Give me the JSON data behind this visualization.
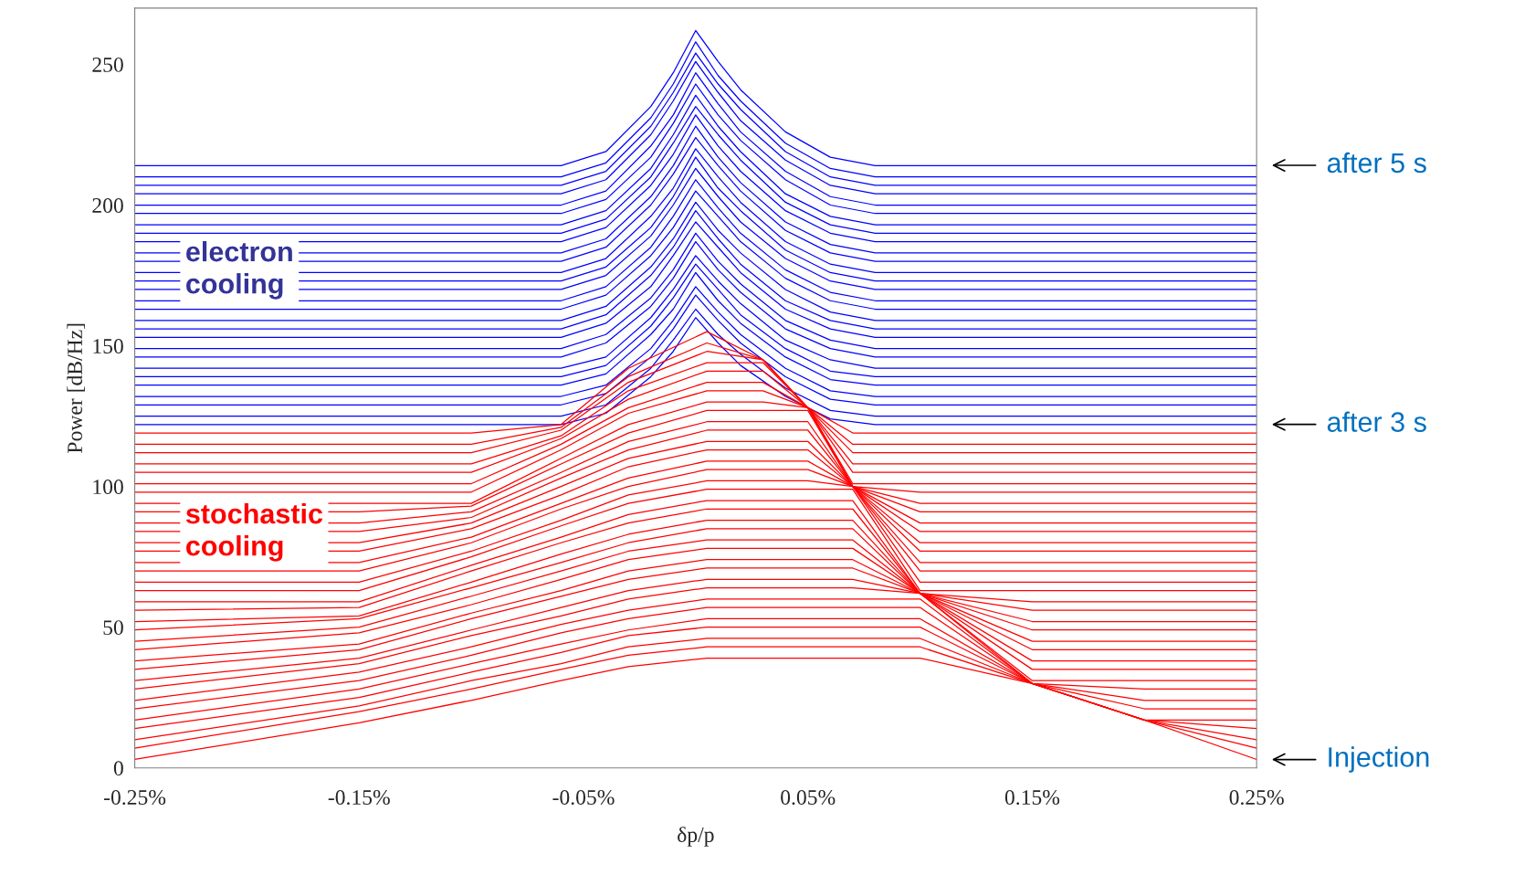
{
  "chart_data": {
    "type": "line",
    "xlabel": "δp/p",
    "ylabel": "Power [dB/Hz]",
    "xlim": [
      -0.25,
      0.25
    ],
    "ylim": [
      0,
      270
    ],
    "xticks": [
      {
        "value": -0.25,
        "label": "-0.25%"
      },
      {
        "value": -0.15,
        "label": "-0.15%"
      },
      {
        "value": -0.05,
        "label": "-0.05%"
      },
      {
        "value": 0.05,
        "label": "0.05%"
      },
      {
        "value": 0.15,
        "label": "0.15%"
      },
      {
        "value": 0.25,
        "label": "0.25%"
      }
    ],
    "yticks": [
      0,
      50,
      100,
      150,
      200,
      250
    ],
    "grid": false,
    "marker": "none",
    "line_style": "solid",
    "annotations": [
      "electron\ncooling",
      "stochastic\ncooling",
      "after 5 s",
      "after 3 s",
      "Injection"
    ],
    "series": [
      {
        "color": "#0000ff",
        "x": [
          -0.25,
          -0.1,
          -0.06,
          -0.04,
          -0.02,
          -0.01,
          0,
          0.01,
          0.02,
          0.04,
          0.06,
          0.08,
          0.25
        ],
        "values": [
          122,
          122,
          122,
          126,
          139,
          148,
          160,
          151,
          143,
          132,
          124,
          122,
          122
        ]
      },
      {
        "color": "#0000ff",
        "x": [
          -0.25,
          -0.1,
          -0.06,
          -0.04,
          -0.02,
          -0.01,
          0,
          0.01,
          0.02,
          0.04,
          0.06,
          0.08,
          0.25
        ],
        "values": [
          125,
          125,
          125,
          129,
          142,
          152,
          163,
          154,
          147,
          135,
          127,
          125,
          125
        ]
      },
      {
        "color": "#0000ff",
        "x": [
          -0.25,
          -0.1,
          -0.06,
          -0.04,
          -0.02,
          -0.01,
          0,
          0.01,
          0.02,
          0.04,
          0.06,
          0.08,
          0.25
        ],
        "values": [
          129,
          129,
          129,
          133,
          146,
          156,
          168,
          159,
          151,
          139,
          131,
          129,
          129
        ]
      },
      {
        "color": "#0000ff",
        "x": [
          -0.25,
          -0.1,
          -0.06,
          -0.04,
          -0.02,
          -0.01,
          0,
          0.01,
          0.02,
          0.04,
          0.06,
          0.08,
          0.25
        ],
        "values": [
          132,
          132,
          132,
          136,
          149,
          159,
          171,
          162,
          154,
          142,
          134,
          132,
          132
        ]
      },
      {
        "color": "#0000ff",
        "x": [
          -0.25,
          -0.1,
          -0.06,
          -0.04,
          -0.02,
          -0.01,
          0,
          0.01,
          0.02,
          0.04,
          0.06,
          0.08,
          0.25
        ],
        "values": [
          136,
          136,
          136,
          140,
          154,
          163,
          176,
          166,
          158,
          146,
          138,
          136,
          136
        ]
      },
      {
        "color": "#0000ff",
        "x": [
          -0.25,
          -0.1,
          -0.06,
          -0.04,
          -0.02,
          -0.01,
          0,
          0.01,
          0.02,
          0.04,
          0.06,
          0.08,
          0.25
        ],
        "values": [
          139,
          139,
          139,
          143,
          157,
          167,
          179,
          170,
          161,
          149,
          141,
          139,
          139
        ]
      },
      {
        "color": "#0000ff",
        "x": [
          -0.25,
          -0.1,
          -0.06,
          -0.04,
          -0.02,
          -0.01,
          0,
          0.01,
          0.02,
          0.04,
          0.06,
          0.08,
          0.25
        ],
        "values": [
          142,
          142,
          142,
          146,
          160,
          170,
          182,
          173,
          165,
          152,
          145,
          142,
          142
        ]
      },
      {
        "color": "#0000ff",
        "x": [
          -0.25,
          -0.1,
          -0.06,
          -0.04,
          -0.02,
          -0.01,
          0,
          0.01,
          0.02,
          0.04,
          0.06,
          0.08,
          0.25
        ],
        "values": [
          146,
          146,
          146,
          151,
          164,
          174,
          187,
          177,
          169,
          156,
          149,
          146,
          146
        ]
      },
      {
        "color": "#0000ff",
        "x": [
          -0.25,
          -0.1,
          -0.06,
          -0.04,
          -0.02,
          -0.01,
          0,
          0.01,
          0.02,
          0.04,
          0.06,
          0.08,
          0.25
        ],
        "values": [
          149,
          149,
          149,
          154,
          167,
          177,
          190,
          180,
          172,
          159,
          152,
          149,
          149
        ]
      },
      {
        "color": "#0000ff",
        "x": [
          -0.25,
          -0.1,
          -0.06,
          -0.04,
          -0.02,
          -0.01,
          0,
          0.01,
          0.02,
          0.04,
          0.06,
          0.08,
          0.25
        ],
        "values": [
          153,
          153,
          153,
          158,
          171,
          182,
          194,
          185,
          176,
          163,
          156,
          153,
          153
        ]
      },
      {
        "color": "#0000ff",
        "x": [
          -0.25,
          -0.1,
          -0.06,
          -0.04,
          -0.02,
          -0.01,
          0,
          0.01,
          0.02,
          0.04,
          0.06,
          0.08,
          0.25
        ],
        "values": [
          156,
          156,
          156,
          161,
          175,
          185,
          198,
          188,
          179,
          166,
          159,
          156,
          156
        ]
      },
      {
        "color": "#0000ff",
        "x": [
          -0.25,
          -0.1,
          -0.06,
          -0.04,
          -0.02,
          -0.01,
          0,
          0.01,
          0.02,
          0.04,
          0.06,
          0.08,
          0.25
        ],
        "values": [
          159,
          159,
          159,
          164,
          178,
          188,
          201,
          191,
          183,
          170,
          162,
          159,
          159
        ]
      },
      {
        "color": "#0000ff",
        "x": [
          -0.25,
          -0.1,
          -0.06,
          -0.04,
          -0.02,
          -0.01,
          0,
          0.01,
          0.02,
          0.04,
          0.06,
          0.08,
          0.25
        ],
        "values": [
          163,
          163,
          163,
          168,
          182,
          192,
          205,
          196,
          187,
          174,
          166,
          163,
          163
        ]
      },
      {
        "color": "#0000ff",
        "x": [
          -0.25,
          -0.1,
          -0.06,
          -0.04,
          -0.02,
          -0.01,
          0,
          0.01,
          0.02,
          0.04,
          0.06,
          0.08,
          0.25
        ],
        "values": [
          166,
          166,
          166,
          171,
          185,
          196,
          209,
          199,
          190,
          177,
          169,
          166,
          166
        ]
      },
      {
        "color": "#0000ff",
        "x": [
          -0.25,
          -0.1,
          -0.06,
          -0.04,
          -0.02,
          -0.01,
          0,
          0.01,
          0.02,
          0.04,
          0.06,
          0.08,
          0.25
        ],
        "values": [
          170,
          170,
          170,
          175,
          189,
          200,
          213,
          203,
          194,
          181,
          173,
          170,
          170
        ]
      },
      {
        "color": "#0000ff",
        "x": [
          -0.25,
          -0.1,
          -0.06,
          -0.04,
          -0.02,
          -0.01,
          0,
          0.01,
          0.02,
          0.04,
          0.06,
          0.08,
          0.25
        ],
        "values": [
          173,
          173,
          173,
          178,
          192,
          203,
          217,
          206,
          198,
          184,
          176,
          173,
          173
        ]
      },
      {
        "color": "#0000ff",
        "x": [
          -0.25,
          -0.1,
          -0.06,
          -0.04,
          -0.02,
          -0.01,
          0,
          0.01,
          0.02,
          0.04,
          0.06,
          0.08,
          0.25
        ],
        "values": [
          176,
          176,
          176,
          181,
          196,
          206,
          220,
          210,
          201,
          187,
          179,
          176,
          176
        ]
      },
      {
        "color": "#0000ff",
        "x": [
          -0.25,
          -0.1,
          -0.06,
          -0.04,
          -0.02,
          -0.01,
          0,
          0.01,
          0.02,
          0.04,
          0.06,
          0.08,
          0.25
        ],
        "values": [
          180,
          180,
          180,
          185,
          200,
          211,
          224,
          214,
          205,
          191,
          183,
          180,
          180
        ]
      },
      {
        "color": "#0000ff",
        "x": [
          -0.25,
          -0.1,
          -0.06,
          -0.04,
          -0.02,
          -0.01,
          0,
          0.01,
          0.02,
          0.04,
          0.06,
          0.08,
          0.25
        ],
        "values": [
          183,
          183,
          183,
          188,
          203,
          214,
          228,
          217,
          208,
          194,
          186,
          183,
          183
        ]
      },
      {
        "color": "#0000ff",
        "x": [
          -0.25,
          -0.1,
          -0.06,
          -0.04,
          -0.02,
          -0.01,
          0,
          0.01,
          0.02,
          0.04,
          0.06,
          0.08,
          0.25
        ],
        "values": [
          187,
          187,
          187,
          192,
          207,
          218,
          232,
          221,
          212,
          198,
          190,
          187,
          187
        ]
      },
      {
        "color": "#0000ff",
        "x": [
          -0.25,
          -0.1,
          -0.06,
          -0.04,
          -0.02,
          -0.01,
          0,
          0.01,
          0.02,
          0.04,
          0.06,
          0.08,
          0.25
        ],
        "values": [
          190,
          190,
          190,
          195,
          210,
          222,
          235,
          225,
          216,
          201,
          193,
          190,
          190
        ]
      },
      {
        "color": "#0000ff",
        "x": [
          -0.25,
          -0.1,
          -0.06,
          -0.04,
          -0.02,
          -0.01,
          0,
          0.01,
          0.02,
          0.04,
          0.06,
          0.08,
          0.25
        ],
        "values": [
          193,
          193,
          193,
          198,
          213,
          225,
          239,
          228,
          219,
          204,
          196,
          193,
          193
        ]
      },
      {
        "color": "#0000ff",
        "x": [
          -0.25,
          -0.1,
          -0.06,
          -0.04,
          -0.02,
          -0.01,
          0,
          0.01,
          0.02,
          0.04,
          0.06,
          0.08,
          0.25
        ],
        "values": [
          197,
          197,
          197,
          202,
          217,
          229,
          243,
          232,
          223,
          209,
          200,
          197,
          197
        ]
      },
      {
        "color": "#0000ff",
        "x": [
          -0.25,
          -0.1,
          -0.06,
          -0.04,
          -0.02,
          -0.01,
          0,
          0.01,
          0.02,
          0.04,
          0.06,
          0.08,
          0.25
        ],
        "values": [
          200,
          200,
          200,
          205,
          221,
          232,
          247,
          236,
          226,
          212,
          203,
          200,
          200
        ]
      },
      {
        "color": "#0000ff",
        "x": [
          -0.25,
          -0.1,
          -0.06,
          -0.04,
          -0.02,
          -0.01,
          0,
          0.01,
          0.02,
          0.04,
          0.06,
          0.08,
          0.25
        ],
        "values": [
          204,
          204,
          204,
          209,
          225,
          237,
          251,
          240,
          230,
          216,
          207,
          204,
          204
        ]
      },
      {
        "color": "#0000ff",
        "x": [
          -0.25,
          -0.1,
          -0.06,
          -0.04,
          -0.02,
          -0.01,
          0,
          0.01,
          0.02,
          0.04,
          0.06,
          0.08,
          0.25
        ],
        "values": [
          207,
          207,
          207,
          212,
          228,
          240,
          254,
          243,
          234,
          219,
          210,
          207,
          207
        ]
      },
      {
        "color": "#0000ff",
        "x": [
          -0.25,
          -0.1,
          -0.06,
          -0.04,
          -0.02,
          -0.01,
          0,
          0.01,
          0.02,
          0.04,
          0.06,
          0.08,
          0.25
        ],
        "values": [
          210,
          210,
          210,
          215,
          231,
          243,
          258,
          246,
          237,
          222,
          213,
          210,
          210
        ]
      },
      {
        "color": "#0000ff",
        "x": [
          -0.25,
          -0.1,
          -0.06,
          -0.04,
          -0.02,
          -0.01,
          0,
          0.01,
          0.02,
          0.04,
          0.06,
          0.08,
          0.25
        ],
        "values": [
          214,
          214,
          214,
          219,
          235,
          247,
          262,
          251,
          241,
          226,
          217,
          214,
          214
        ]
      },
      {
        "color": "#ff0000",
        "x": [
          -0.25,
          -0.15,
          -0.1,
          -0.06,
          -0.03,
          0.005,
          0.03,
          0.05,
          0.07,
          0.1,
          0.15,
          0.2,
          0.25
        ],
        "values": [
          3,
          16,
          24,
          31,
          36,
          39,
          39,
          39,
          39,
          39,
          30,
          17,
          3
        ]
      },
      {
        "color": "#ff0000",
        "x": [
          -0.25,
          -0.15,
          -0.1,
          -0.06,
          -0.03,
          0.005,
          0.03,
          0.05,
          0.07,
          0.1,
          0.15,
          0.2,
          0.25
        ],
        "values": [
          7,
          20,
          28,
          35,
          40,
          43,
          43,
          43,
          43,
          43,
          30,
          17,
          7
        ]
      },
      {
        "color": "#ff0000",
        "x": [
          -0.25,
          -0.15,
          -0.1,
          -0.06,
          -0.03,
          0.005,
          0.03,
          0.05,
          0.07,
          0.1,
          0.15,
          0.2,
          0.25
        ],
        "values": [
          10,
          22,
          31,
          37,
          43,
          46,
          46,
          46,
          46,
          46,
          30,
          17,
          10
        ]
      },
      {
        "color": "#ff0000",
        "x": [
          -0.25,
          -0.15,
          -0.1,
          -0.06,
          -0.03,
          0.005,
          0.03,
          0.05,
          0.07,
          0.1,
          0.15,
          0.2,
          0.25
        ],
        "values": [
          14,
          25,
          34,
          41,
          47,
          50,
          50,
          50,
          50,
          50,
          30,
          17,
          14
        ]
      },
      {
        "color": "#ff0000",
        "x": [
          -0.25,
          -0.15,
          -0.1,
          -0.06,
          -0.03,
          0.005,
          0.03,
          0.05,
          0.07,
          0.1,
          0.15,
          0.2,
          0.25
        ],
        "values": [
          17,
          28,
          37,
          44,
          49,
          53,
          53,
          53,
          53,
          53,
          30,
          17,
          17
        ]
      },
      {
        "color": "#ff0000",
        "x": [
          -0.25,
          -0.15,
          -0.1,
          -0.06,
          -0.03,
          0.005,
          0.03,
          0.05,
          0.07,
          0.1,
          0.15,
          0.2,
          0.25
        ],
        "values": [
          21,
          31,
          40,
          48,
          53,
          57,
          57,
          57,
          57,
          57,
          30,
          21,
          21
        ]
      },
      {
        "color": "#ff0000",
        "x": [
          -0.25,
          -0.15,
          -0.1,
          -0.06,
          -0.03,
          0.005,
          0.03,
          0.05,
          0.07,
          0.1,
          0.15,
          0.2,
          0.25
        ],
        "values": [
          24,
          34,
          43,
          51,
          56,
          60,
          60,
          60,
          60,
          60,
          30,
          24,
          24
        ]
      },
      {
        "color": "#ff0000",
        "x": [
          -0.25,
          -0.15,
          -0.1,
          -0.06,
          -0.03,
          0.005,
          0.03,
          0.05,
          0.07,
          0.1,
          0.15,
          0.2,
          0.25
        ],
        "values": [
          28,
          37,
          47,
          54,
          60,
          64,
          64,
          64,
          64,
          62,
          30,
          28,
          28
        ]
      },
      {
        "color": "#ff0000",
        "x": [
          -0.25,
          -0.15,
          -0.1,
          -0.06,
          -0.03,
          0.005,
          0.03,
          0.05,
          0.07,
          0.1,
          0.15,
          0.2,
          0.25
        ],
        "values": [
          31,
          39,
          49,
          57,
          63,
          67,
          67,
          67,
          67,
          62,
          31,
          31,
          31
        ]
      },
      {
        "color": "#ff0000",
        "x": [
          -0.25,
          -0.15,
          -0.1,
          -0.06,
          -0.03,
          0.005,
          0.03,
          0.05,
          0.07,
          0.1,
          0.15,
          0.2,
          0.25
        ],
        "values": [
          35,
          42,
          53,
          61,
          67,
          71,
          71,
          71,
          71,
          62,
          35,
          35,
          35
        ]
      },
      {
        "color": "#ff0000",
        "x": [
          -0.25,
          -0.15,
          -0.1,
          -0.06,
          -0.03,
          0.005,
          0.03,
          0.05,
          0.07,
          0.1,
          0.15,
          0.2,
          0.25
        ],
        "values": [
          38,
          44,
          55,
          63,
          70,
          74,
          74,
          74,
          74,
          62,
          38,
          38,
          38
        ]
      },
      {
        "color": "#ff0000",
        "x": [
          -0.25,
          -0.15,
          -0.1,
          -0.06,
          -0.03,
          0.005,
          0.03,
          0.05,
          0.07,
          0.1,
          0.15,
          0.2,
          0.25
        ],
        "values": [
          42,
          48,
          58,
          67,
          74,
          78,
          78,
          78,
          78,
          62,
          42,
          42,
          42
        ]
      },
      {
        "color": "#ff0000",
        "x": [
          -0.25,
          -0.15,
          -0.1,
          -0.06,
          -0.03,
          0.005,
          0.03,
          0.05,
          0.07,
          0.1,
          0.15,
          0.2,
          0.25
        ],
        "values": [
          45,
          50,
          61,
          70,
          77,
          81,
          81,
          81,
          81,
          62,
          45,
          45,
          45
        ]
      },
      {
        "color": "#ff0000",
        "x": [
          -0.25,
          -0.15,
          -0.1,
          -0.06,
          -0.03,
          0.005,
          0.03,
          0.05,
          0.07,
          0.1,
          0.15,
          0.2,
          0.25
        ],
        "values": [
          49,
          53,
          64,
          73,
          80,
          85,
          85,
          85,
          85,
          62,
          49,
          49,
          49
        ]
      },
      {
        "color": "#ff0000",
        "x": [
          -0.25,
          -0.15,
          -0.1,
          -0.06,
          -0.03,
          0.005,
          0.03,
          0.05,
          0.07,
          0.1,
          0.15,
          0.2,
          0.25
        ],
        "values": [
          52,
          54,
          66,
          76,
          83,
          88,
          88,
          88,
          88,
          62,
          52,
          52,
          52
        ]
      },
      {
        "color": "#ff0000",
        "x": [
          -0.25,
          -0.15,
          -0.1,
          -0.06,
          -0.03,
          0.005,
          0.03,
          0.05,
          0.07,
          0.1,
          0.15,
          0.2,
          0.25
        ],
        "values": [
          56,
          57,
          70,
          80,
          87,
          92,
          92,
          92,
          92,
          62,
          56,
          56,
          56
        ]
      },
      {
        "color": "#ff0000",
        "x": [
          -0.25,
          -0.15,
          -0.1,
          -0.06,
          -0.03,
          0.005,
          0.03,
          0.05,
          0.07,
          0.1,
          0.15,
          0.2,
          0.25
        ],
        "values": [
          59,
          59,
          72,
          82,
          90,
          95,
          95,
          95,
          95,
          62,
          59,
          59,
          59
        ]
      },
      {
        "color": "#ff0000",
        "x": [
          -0.25,
          -0.15,
          -0.1,
          -0.06,
          -0.03,
          0.005,
          0.03,
          0.05,
          0.07,
          0.1,
          0.15,
          0.2,
          0.25
        ],
        "values": [
          63,
          63,
          75,
          86,
          94,
          99,
          99,
          99,
          99,
          63,
          63,
          63,
          63
        ]
      },
      {
        "color": "#ff0000",
        "x": [
          -0.25,
          -0.15,
          -0.1,
          -0.06,
          -0.03,
          0.005,
          0.03,
          0.05,
          0.07,
          0.1,
          0.15,
          0.2,
          0.25
        ],
        "values": [
          66,
          66,
          77,
          88,
          97,
          102,
          102,
          102,
          100,
          66,
          66,
          66,
          66
        ]
      },
      {
        "color": "#ff0000",
        "x": [
          -0.25,
          -0.15,
          -0.1,
          -0.06,
          -0.03,
          0.005,
          0.03,
          0.05,
          0.07,
          0.1,
          0.15,
          0.2,
          0.25
        ],
        "values": [
          70,
          70,
          80,
          92,
          100,
          106,
          106,
          106,
          100,
          70,
          70,
          70,
          70
        ]
      },
      {
        "color": "#ff0000",
        "x": [
          -0.25,
          -0.15,
          -0.1,
          -0.06,
          -0.03,
          0.005,
          0.03,
          0.05,
          0.07,
          0.1,
          0.15,
          0.2,
          0.25
        ],
        "values": [
          73,
          73,
          82,
          94,
          103,
          109,
          109,
          109,
          100,
          73,
          73,
          73,
          73
        ]
      },
      {
        "color": "#ff0000",
        "x": [
          -0.25,
          -0.15,
          -0.1,
          -0.06,
          -0.03,
          0.005,
          0.03,
          0.05,
          0.07,
          0.1,
          0.15,
          0.2,
          0.25
        ],
        "values": [
          77,
          77,
          85,
          97,
          107,
          113,
          113,
          113,
          100,
          77,
          77,
          77,
          77
        ]
      },
      {
        "color": "#ff0000",
        "x": [
          -0.25,
          -0.15,
          -0.1,
          -0.06,
          -0.03,
          0.005,
          0.03,
          0.05,
          0.07,
          0.1,
          0.15,
          0.2,
          0.25
        ],
        "values": [
          80,
          80,
          87,
          100,
          110,
          116,
          116,
          116,
          100,
          80,
          80,
          80,
          80
        ]
      },
      {
        "color": "#ff0000",
        "x": [
          -0.25,
          -0.15,
          -0.1,
          -0.06,
          -0.03,
          0.005,
          0.03,
          0.05,
          0.07,
          0.1,
          0.15,
          0.2,
          0.25
        ],
        "values": [
          84,
          84,
          89,
          103,
          113,
          120,
          120,
          120,
          100,
          84,
          84,
          84,
          84
        ]
      },
      {
        "color": "#ff0000",
        "x": [
          -0.25,
          -0.15,
          -0.1,
          -0.06,
          -0.03,
          0.005,
          0.03,
          0.05,
          0.07,
          0.1,
          0.15,
          0.2,
          0.25
        ],
        "values": [
          87,
          87,
          91,
          105,
          116,
          123,
          123,
          123,
          100,
          87,
          87,
          87,
          87
        ]
      },
      {
        "color": "#ff0000",
        "x": [
          -0.25,
          -0.15,
          -0.1,
          -0.06,
          -0.03,
          0.005,
          0.03,
          0.05,
          0.07,
          0.1,
          0.15,
          0.2,
          0.25
        ],
        "values": [
          91,
          91,
          93,
          108,
          119,
          127,
          127,
          127,
          100,
          91,
          91,
          91,
          91
        ]
      },
      {
        "color": "#ff0000",
        "x": [
          -0.25,
          -0.15,
          -0.1,
          -0.06,
          -0.03,
          0.005,
          0.03,
          0.05,
          0.07,
          0.1,
          0.15,
          0.2,
          0.25
        ],
        "values": [
          94,
          94,
          94,
          110,
          122,
          130,
          130,
          128,
          100,
          94,
          94,
          94,
          94
        ]
      },
      {
        "color": "#ff0000",
        "x": [
          -0.25,
          -0.15,
          -0.1,
          -0.06,
          -0.03,
          0.005,
          0.03,
          0.05,
          0.07,
          0.1,
          0.15,
          0.2,
          0.25
        ],
        "values": [
          98,
          98,
          98,
          113,
          126,
          134,
          134,
          128,
          100,
          98,
          98,
          98,
          98
        ]
      },
      {
        "color": "#ff0000",
        "x": [
          -0.25,
          -0.15,
          -0.1,
          -0.06,
          -0.03,
          0.005,
          0.03,
          0.05,
          0.07,
          0.1,
          0.15,
          0.2,
          0.25
        ],
        "values": [
          101,
          101,
          101,
          115,
          128,
          137,
          137,
          128,
          101,
          101,
          101,
          101,
          101
        ]
      },
      {
        "color": "#ff0000",
        "x": [
          -0.25,
          -0.15,
          -0.1,
          -0.06,
          -0.03,
          0.005,
          0.03,
          0.05,
          0.07,
          0.1,
          0.15,
          0.2,
          0.25
        ],
        "values": [
          105,
          105,
          105,
          117,
          131,
          141,
          141,
          128,
          105,
          105,
          105,
          105,
          105
        ]
      },
      {
        "color": "#ff0000",
        "x": [
          -0.25,
          -0.15,
          -0.1,
          -0.06,
          -0.03,
          0.005,
          0.03,
          0.05,
          0.07,
          0.1,
          0.15,
          0.2,
          0.25
        ],
        "values": [
          108,
          108,
          108,
          118,
          134,
          144,
          144,
          128,
          108,
          108,
          108,
          108,
          108
        ]
      },
      {
        "color": "#ff0000",
        "x": [
          -0.25,
          -0.15,
          -0.1,
          -0.06,
          -0.03,
          0.005,
          0.03,
          0.05,
          0.07,
          0.1,
          0.15,
          0.2,
          0.25
        ],
        "values": [
          112,
          112,
          112,
          120,
          137,
          148,
          145,
          128,
          112,
          112,
          112,
          112,
          112
        ]
      },
      {
        "color": "#ff0000",
        "x": [
          -0.25,
          -0.15,
          -0.1,
          -0.06,
          -0.03,
          0.005,
          0.03,
          0.05,
          0.07,
          0.1,
          0.15,
          0.2,
          0.25
        ],
        "values": [
          115,
          115,
          115,
          121,
          139,
          151,
          145,
          128,
          115,
          115,
          115,
          115,
          115
        ]
      },
      {
        "color": "#ff0000",
        "x": [
          -0.25,
          -0.15,
          -0.1,
          -0.06,
          -0.03,
          0.005,
          0.03,
          0.05,
          0.07,
          0.1,
          0.15,
          0.2,
          0.25
        ],
        "values": [
          119,
          119,
          119,
          122,
          142,
          155,
          145,
          128,
          119,
          119,
          119,
          119,
          119
        ]
      }
    ]
  }
}
